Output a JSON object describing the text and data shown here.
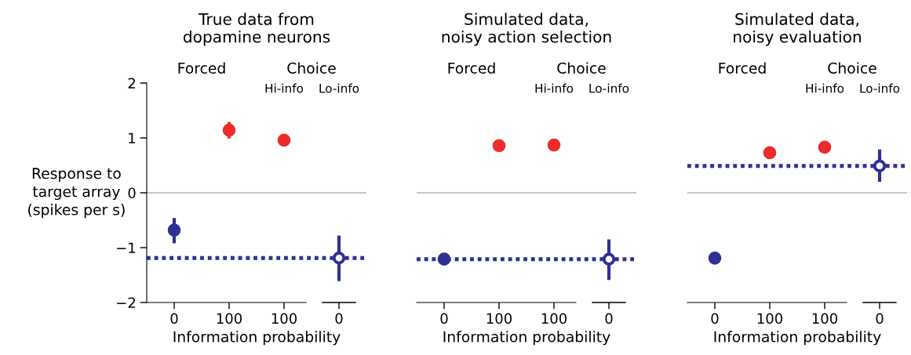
{
  "chart_data": [
    {
      "type": "scatter",
      "title": "True data from\ndopamine neurons",
      "xlabel": "Information probability",
      "ylabel": "Response to\ntarget array\n(spikes per s)",
      "categories": [
        "0",
        "100",
        "100",
        "0"
      ],
      "ylim": [
        -2,
        2
      ],
      "yticks": [
        {
          "value": -2,
          "label": "−2"
        },
        {
          "value": -1,
          "label": "−1"
        },
        0,
        1,
        2
      ],
      "grid": false,
      "marker": "circle",
      "series": [
        {
          "color": "#2e3192",
          "values": [
            -0.68,
            null,
            null,
            null
          ],
          "errors": [
            [
              -0.92,
              -0.46
            ],
            null,
            null,
            null
          ]
        },
        {
          "color": "#ec2c2c",
          "values": [
            null,
            1.14,
            0.96,
            null
          ],
          "errors": [
            null,
            [
              0.99,
              1.29
            ],
            null,
            null
          ]
        },
        {
          "color": "#2e3192",
          "values": [
            null,
            null,
            null,
            -1.19
          ],
          "errors": [
            null,
            null,
            null,
            [
              -1.61,
              -0.78
            ]
          ]
        }
      ],
      "ref_lines": [
        {
          "axis": "y",
          "value": 0,
          "color": "#b3b3b3",
          "line_style": "solid"
        },
        {
          "axis": "y",
          "value": -1.19,
          "color": "#2e3192",
          "line_style": "dotted"
        }
      ],
      "annotations": [
        "Forced",
        "Choice",
        "Hi-info",
        "Lo-info"
      ]
    },
    {
      "type": "scatter",
      "title": "Simulated data,\nnoisy action selection",
      "xlabel": "Information probability",
      "categories": [
        "0",
        "100",
        "100",
        "0"
      ],
      "ylim": [
        -2,
        2
      ],
      "tick_labels": "x",
      "grid": false,
      "marker": "circle",
      "series": [
        {
          "color": "#2e3192",
          "values": [
            -1.21,
            null,
            null,
            null
          ]
        },
        {
          "color": "#ec2c2c",
          "values": [
            null,
            0.86,
            0.87,
            null
          ]
        },
        {
          "color": "#2e3192",
          "values": [
            null,
            null,
            null,
            -1.21
          ],
          "errors": [
            null,
            null,
            null,
            [
              -1.59,
              -0.85
            ]
          ]
        }
      ],
      "ref_lines": [
        {
          "axis": "y",
          "value": 0,
          "color": "#b3b3b3",
          "line_style": "solid"
        },
        {
          "axis": "y",
          "value": -1.21,
          "color": "#2e3192",
          "line_style": "dotted"
        }
      ],
      "annotations": [
        "Forced",
        "Choice",
        "Hi-info",
        "Lo-info"
      ]
    },
    {
      "type": "scatter",
      "title": "Simulated data,\nnoisy evaluation",
      "xlabel": "Information probability",
      "categories": [
        "0",
        "100",
        "100",
        "0"
      ],
      "ylim": [
        -2,
        2
      ],
      "tick_labels": "x",
      "grid": false,
      "marker": "circle",
      "series": [
        {
          "color": "#2e3192",
          "values": [
            -1.19,
            null,
            null,
            null
          ]
        },
        {
          "color": "#ec2c2c",
          "values": [
            null,
            0.73,
            0.83,
            null
          ]
        },
        {
          "color": "#2e3192",
          "values": [
            null,
            null,
            null,
            0.49
          ],
          "errors": [
            null,
            null,
            null,
            [
              0.2,
              0.79
            ]
          ]
        }
      ],
      "ref_lines": [
        {
          "axis": "y",
          "value": 0,
          "color": "#b3b3b3",
          "line_style": "solid"
        },
        {
          "axis": "y",
          "value": 0.49,
          "color": "#2e3192",
          "line_style": "dotted"
        }
      ],
      "annotations": [
        "Forced",
        "Choice",
        "Hi-info",
        "Lo-info"
      ]
    }
  ]
}
